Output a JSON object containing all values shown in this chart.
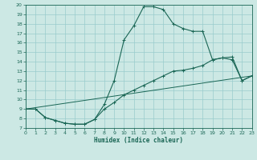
{
  "xlabel": "Humidex (Indice chaleur)",
  "bg_color": "#cce8e4",
  "grid_color": "#99cccc",
  "line_color": "#1a6655",
  "xlim": [
    0,
    23
  ],
  "ylim": [
    7,
    20
  ],
  "xticks": [
    0,
    1,
    2,
    3,
    4,
    5,
    6,
    7,
    8,
    9,
    10,
    11,
    12,
    13,
    14,
    15,
    16,
    17,
    18,
    19,
    20,
    21,
    22,
    23
  ],
  "yticks": [
    7,
    8,
    9,
    10,
    11,
    12,
    13,
    14,
    15,
    16,
    17,
    18,
    19,
    20
  ],
  "curve1_x": [
    0,
    1,
    2,
    3,
    4,
    5,
    6,
    7,
    8,
    9,
    10,
    11,
    12,
    13,
    14,
    15,
    16,
    17,
    18,
    19,
    20,
    21,
    22,
    23
  ],
  "curve1_y": [
    9.0,
    9.0,
    8.1,
    7.8,
    7.5,
    7.4,
    7.4,
    7.9,
    9.5,
    12.0,
    16.3,
    17.8,
    19.8,
    19.8,
    19.5,
    18.0,
    17.5,
    17.2,
    17.2,
    14.2,
    14.4,
    14.2,
    12.0,
    12.5
  ],
  "curve2_x": [
    0,
    1,
    2,
    3,
    4,
    5,
    6,
    7,
    8,
    9,
    10,
    11,
    12,
    13,
    14,
    15,
    16,
    17,
    18,
    19,
    20,
    21,
    22,
    23
  ],
  "curve2_y": [
    9.0,
    9.0,
    8.1,
    7.8,
    7.5,
    7.4,
    7.4,
    7.9,
    9.0,
    9.7,
    10.5,
    11.0,
    11.5,
    12.0,
    12.5,
    13.0,
    13.1,
    13.3,
    13.6,
    14.2,
    14.4,
    14.5,
    12.0,
    12.5
  ],
  "curve3_x": [
    0,
    23
  ],
  "curve3_y": [
    9.0,
    12.5
  ]
}
